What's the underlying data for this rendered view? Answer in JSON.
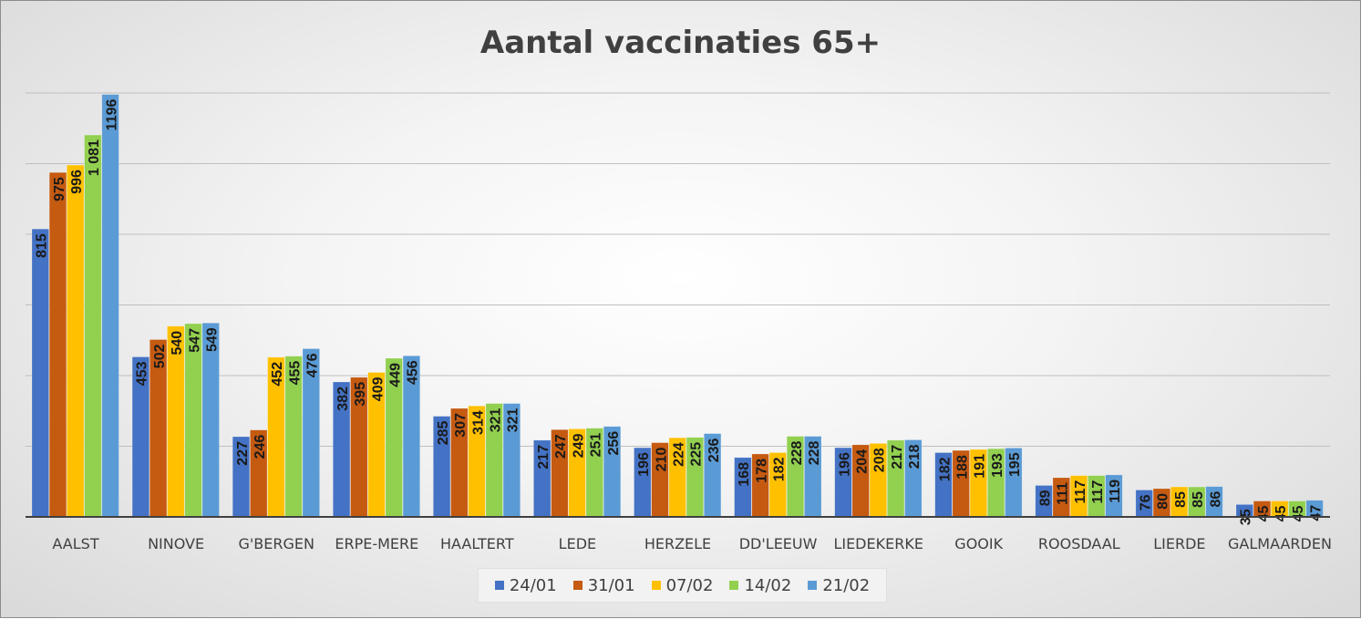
{
  "chart_data": {
    "type": "bar",
    "title": "Aantal vaccinaties 65+",
    "xlabel": "",
    "ylabel": "",
    "ylim": [
      0,
      1200
    ],
    "grid": true,
    "legend_position": "bottom",
    "categories": [
      "AALST",
      "NINOVE",
      "G'BERGEN",
      "ERPE-MERE",
      "HAALTERT",
      "LEDE",
      "HERZELE",
      "DD'LEEUW",
      "LIEDEKERKE",
      "GOOIK",
      "ROOSDAAL",
      "LIERDE",
      "GALMAARDEN"
    ],
    "series": [
      {
        "name": "24/01",
        "color": "#4472C4",
        "values": [
          815,
          453,
          227,
          382,
          285,
          217,
          196,
          168,
          196,
          182,
          89,
          76,
          35
        ],
        "labels": [
          "815",
          "453",
          "227",
          "382",
          "285",
          "217",
          "196",
          "168",
          "196",
          "182",
          "89",
          "76",
          "35"
        ]
      },
      {
        "name": "31/01",
        "color": "#C55A11",
        "values": [
          975,
          502,
          246,
          395,
          307,
          247,
          210,
          178,
          204,
          188,
          111,
          80,
          45
        ],
        "labels": [
          "975",
          "502",
          "246",
          "395",
          "307",
          "247",
          "210",
          "178",
          "204",
          "188",
          "111",
          "80",
          "45"
        ]
      },
      {
        "name": "07/02",
        "color": "#FFC000",
        "values": [
          996,
          540,
          452,
          409,
          314,
          249,
          224,
          182,
          208,
          191,
          117,
          85,
          45
        ],
        "labels": [
          "996",
          "540",
          "452",
          "409",
          "314",
          "249",
          "224",
          "182",
          "208",
          "191",
          "117",
          "85",
          "45"
        ]
      },
      {
        "name": "14/02",
        "color": "#92D050",
        "values": [
          1081,
          547,
          455,
          449,
          321,
          251,
          225,
          228,
          217,
          193,
          117,
          85,
          45
        ],
        "labels": [
          "1 081",
          "547",
          "455",
          "449",
          "321",
          "251",
          "225",
          "228",
          "217",
          "193",
          "117",
          "85",
          "45"
        ]
      },
      {
        "name": "21/02",
        "color": "#5B9BD5",
        "values": [
          1196,
          549,
          476,
          456,
          321,
          256,
          236,
          228,
          218,
          195,
          119,
          86,
          47
        ],
        "labels": [
          "1196",
          "549",
          "476",
          "456",
          "321",
          "256",
          "236",
          "228",
          "218",
          "195",
          "119",
          "86",
          "47"
        ]
      }
    ]
  }
}
